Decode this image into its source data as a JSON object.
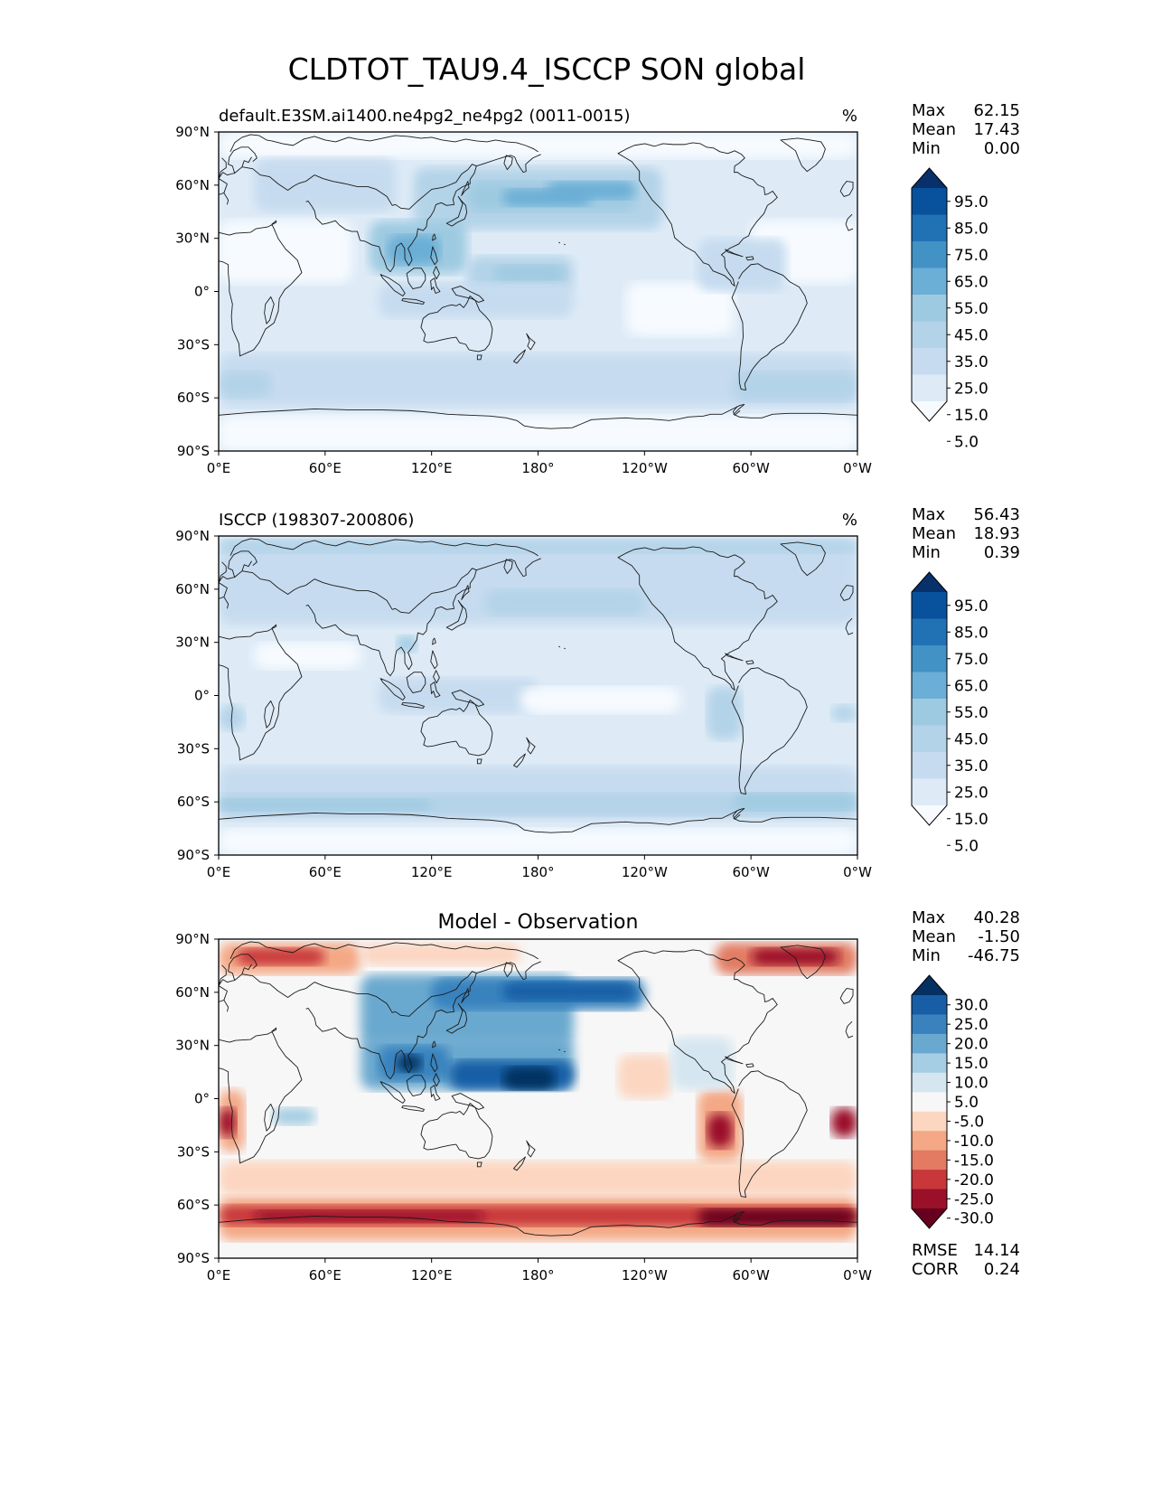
{
  "figure_title": "CLDTOT_TAU9.4_ISCCP SON global",
  "colors": {
    "sequential": [
      "#f7fbff",
      "#deebf7",
      "#c6dbef",
      "#b3d3e8",
      "#9ecae1",
      "#6baed6",
      "#4292c6",
      "#2171b5",
      "#08519c",
      "#08306b"
    ],
    "diverging": [
      "#67001f",
      "#9b1029",
      "#c8373a",
      "#e27b62",
      "#f4a885",
      "#fcd6c1",
      "#f7f7f7",
      "#d5e6f0",
      "#a5cde3",
      "#6aa9cf",
      "#3982be",
      "#185ea6",
      "#053061"
    ],
    "coastline": "#1a1a1a"
  },
  "chart_data": [
    {
      "type": "heatmap",
      "id": "model",
      "title": "",
      "left_title": "default.E3SM.ai1400.ne4pg2_ne4pg2 (0011-0015)",
      "units": "%",
      "stats": {
        "max_label": "Max",
        "max": "62.15",
        "mean_label": "Mean",
        "mean": "17.43",
        "min_label": "Min",
        "min": "0.00"
      },
      "colorbar": {
        "ticks": [
          "95.0",
          "85.0",
          "75.0",
          "65.0",
          "55.0",
          "45.0",
          "35.0",
          "25.0",
          "15.0",
          "5.0"
        ],
        "extend": "both"
      },
      "x_ticks": [
        "0°E",
        "60°E",
        "120°E",
        "180°",
        "120°W",
        "60°W",
        "0°W"
      ],
      "y_ticks": [
        "90°N",
        "60°N",
        "30°N",
        "0°",
        "30°S",
        "60°S",
        "90°S"
      ],
      "xlim": [
        0,
        360
      ],
      "ylim": [
        -90,
        90
      ],
      "cells": [
        {
          "lon0": 0,
          "lon1": 360,
          "lat0": -90,
          "lat1": 90,
          "c": 1
        },
        {
          "lon0": 0,
          "lon1": 75,
          "lat0": 5,
          "lat1": 40,
          "c": 0
        },
        {
          "lon0": 300,
          "lon1": 360,
          "lat0": 5,
          "lat1": 40,
          "c": 0
        },
        {
          "lon0": 230,
          "lon1": 290,
          "lat0": -25,
          "lat1": 5,
          "c": 0
        },
        {
          "lon0": 0,
          "lon1": 360,
          "lat0": -90,
          "lat1": -70,
          "c": 0
        },
        {
          "lon0": 0,
          "lon1": 360,
          "lat0": 75,
          "lat1": 90,
          "c": 0
        },
        {
          "lon0": 20,
          "lon1": 100,
          "lat0": 45,
          "lat1": 75,
          "c": 2
        },
        {
          "lon0": 110,
          "lon1": 250,
          "lat0": 35,
          "lat1": 70,
          "c": 3
        },
        {
          "lon0": 140,
          "lon1": 235,
          "lat0": 45,
          "lat1": 62,
          "c": 4
        },
        {
          "lon0": 160,
          "lon1": 210,
          "lat0": 48,
          "lat1": 58,
          "c": 5
        },
        {
          "lon0": 185,
          "lon1": 235,
          "lat0": 52,
          "lat1": 62,
          "c": 5
        },
        {
          "lon0": 85,
          "lon1": 140,
          "lat0": 10,
          "lat1": 40,
          "c": 4
        },
        {
          "lon0": 95,
          "lon1": 125,
          "lat0": 15,
          "lat1": 32,
          "c": 5
        },
        {
          "lon0": 140,
          "lon1": 200,
          "lat0": 0,
          "lat1": 20,
          "c": 3
        },
        {
          "lon0": 155,
          "lon1": 195,
          "lat0": 5,
          "lat1": 15,
          "c": 4
        },
        {
          "lon0": 0,
          "lon1": 360,
          "lat0": -65,
          "lat1": -35,
          "c": 2
        },
        {
          "lon0": 0,
          "lon1": 30,
          "lat0": -60,
          "lat1": -45,
          "c": 3
        },
        {
          "lon0": 290,
          "lon1": 360,
          "lat0": -62,
          "lat1": -45,
          "c": 3
        },
        {
          "lon0": 90,
          "lon1": 200,
          "lat0": -15,
          "lat1": 5,
          "c": 2
        },
        {
          "lon0": 270,
          "lon1": 320,
          "lat0": 0,
          "lat1": 30,
          "c": 2
        }
      ]
    },
    {
      "type": "heatmap",
      "id": "obs",
      "title": "",
      "left_title": "ISCCP (198307-200806)",
      "units": "%",
      "stats": {
        "max_label": "Max",
        "max": "56.43",
        "mean_label": "Mean",
        "mean": "18.93",
        "min_label": "Min",
        "min": "0.39"
      },
      "colorbar": {
        "ticks": [
          "95.0",
          "85.0",
          "75.0",
          "65.0",
          "55.0",
          "45.0",
          "35.0",
          "25.0",
          "15.0",
          "5.0"
        ],
        "extend": "both"
      },
      "x_ticks": [
        "0°E",
        "60°E",
        "120°E",
        "180°",
        "120°W",
        "60°W",
        "0°W"
      ],
      "y_ticks": [
        "90°N",
        "60°N",
        "30°N",
        "0°",
        "30°S",
        "60°S",
        "90°S"
      ],
      "xlim": [
        0,
        360
      ],
      "ylim": [
        -90,
        90
      ],
      "cells": [
        {
          "lon0": 0,
          "lon1": 360,
          "lat0": -90,
          "lat1": 90,
          "c": 1
        },
        {
          "lon0": 0,
          "lon1": 360,
          "lat0": -90,
          "lat1": -75,
          "c": 0
        },
        {
          "lon0": 0,
          "lon1": 360,
          "lat0": 40,
          "lat1": 88,
          "c": 2
        },
        {
          "lon0": 0,
          "lon1": 360,
          "lat0": 80,
          "lat1": 88,
          "c": 3
        },
        {
          "lon0": 150,
          "lon1": 240,
          "lat0": 45,
          "lat1": 60,
          "c": 3
        },
        {
          "lon0": 0,
          "lon1": 360,
          "lat0": -70,
          "lat1": -40,
          "c": 2
        },
        {
          "lon0": 0,
          "lon1": 360,
          "lat0": -68,
          "lat1": -55,
          "c": 3
        },
        {
          "lon0": 0,
          "lon1": 120,
          "lat0": -65,
          "lat1": -58,
          "c": 4
        },
        {
          "lon0": 290,
          "lon1": 360,
          "lat0": -65,
          "lat1": -55,
          "c": 4
        },
        {
          "lon0": 100,
          "lon1": 112,
          "lat0": 24,
          "lat1": 34,
          "c": 4
        },
        {
          "lon0": 0,
          "lon1": 15,
          "lat0": -20,
          "lat1": -5,
          "c": 3
        },
        {
          "lon0": 275,
          "lon1": 295,
          "lat0": -25,
          "lat1": 5,
          "c": 3
        },
        {
          "lon0": 345,
          "lon1": 360,
          "lat0": -15,
          "lat1": -5,
          "c": 3
        },
        {
          "lon0": 90,
          "lon1": 180,
          "lat0": -10,
          "lat1": 10,
          "c": 2
        },
        {
          "lon0": 170,
          "lon1": 260,
          "lat0": -10,
          "lat1": 5,
          "c": 0
        },
        {
          "lon0": 20,
          "lon1": 80,
          "lat0": 15,
          "lat1": 30,
          "c": 0
        }
      ]
    },
    {
      "type": "heatmap",
      "id": "diff",
      "title": "Model - Observation",
      "left_title": "",
      "units": "",
      "stats": {
        "max_label": "Max",
        "max": "40.28",
        "mean_label": "Mean",
        "mean": "-1.50",
        "min_label": "Min",
        "min": "-46.75"
      },
      "colorbar": {
        "ticks": [
          "30.0",
          "25.0",
          "20.0",
          "15.0",
          "10.0",
          "5.0",
          "-5.0",
          "-10.0",
          "-15.0",
          "-20.0",
          "-25.0",
          "-30.0"
        ],
        "extend": "both"
      },
      "extra_stats": {
        "rmse_label": "RMSE",
        "rmse": "14.14",
        "corr_label": "CORR",
        "corr": "0.24"
      },
      "x_ticks": [
        "0°E",
        "60°E",
        "120°E",
        "180°",
        "120°W",
        "60°W",
        "0°W"
      ],
      "y_ticks": [
        "90°N",
        "60°N",
        "30°N",
        "0°",
        "30°S",
        "60°S",
        "90°S"
      ],
      "xlim": [
        0,
        360
      ],
      "ylim": [
        -90,
        90
      ],
      "cells": [
        {
          "lon0": 0,
          "lon1": 360,
          "lat0": -90,
          "lat1": 90,
          "c": 6
        },
        {
          "lon0": 0,
          "lon1": 80,
          "lat0": 70,
          "lat1": 88,
          "c": 4
        },
        {
          "lon0": 10,
          "lon1": 60,
          "lat0": 75,
          "lat1": 85,
          "c": 2
        },
        {
          "lon0": 280,
          "lon1": 360,
          "lat0": 70,
          "lat1": 88,
          "c": 3
        },
        {
          "lon0": 300,
          "lon1": 350,
          "lat0": 75,
          "lat1": 85,
          "c": 1
        },
        {
          "lon0": 80,
          "lon1": 170,
          "lat0": 75,
          "lat1": 88,
          "c": 5
        },
        {
          "lon0": 0,
          "lon1": 360,
          "lat0": -80,
          "lat1": -55,
          "c": 4
        },
        {
          "lon0": 0,
          "lon1": 360,
          "lat0": -72,
          "lat1": -60,
          "c": 2
        },
        {
          "lon0": 20,
          "lon1": 150,
          "lat0": -70,
          "lat1": -63,
          "c": 1
        },
        {
          "lon0": 270,
          "lon1": 360,
          "lat0": -72,
          "lat1": -62,
          "c": 0
        },
        {
          "lon0": 0,
          "lon1": 360,
          "lat0": -55,
          "lat1": -35,
          "c": 5
        },
        {
          "lon0": 0,
          "lon1": 15,
          "lat0": -30,
          "lat1": 5,
          "c": 4
        },
        {
          "lon0": 0,
          "lon1": 10,
          "lat0": -22,
          "lat1": -5,
          "c": 1
        },
        {
          "lon0": 345,
          "lon1": 360,
          "lat0": -22,
          "lat1": -5,
          "c": 1
        },
        {
          "lon0": 270,
          "lon1": 295,
          "lat0": -35,
          "lat1": 5,
          "c": 4
        },
        {
          "lon0": 275,
          "lon1": 290,
          "lat0": -28,
          "lat1": -8,
          "c": 1
        },
        {
          "lon0": 225,
          "lon1": 255,
          "lat0": 0,
          "lat1": 25,
          "c": 5
        },
        {
          "lon0": 80,
          "lon1": 200,
          "lat0": 30,
          "lat1": 70,
          "c": 9
        },
        {
          "lon0": 120,
          "lon1": 240,
          "lat0": 50,
          "lat1": 68,
          "c": 10
        },
        {
          "lon0": 160,
          "lon1": 235,
          "lat0": 55,
          "lat1": 66,
          "c": 11
        },
        {
          "lon0": 80,
          "lon1": 200,
          "lat0": 5,
          "lat1": 35,
          "c": 9
        },
        {
          "lon0": 90,
          "lon1": 130,
          "lat0": 10,
          "lat1": 30,
          "c": 10
        },
        {
          "lon0": 130,
          "lon1": 200,
          "lat0": 5,
          "lat1": 22,
          "c": 11
        },
        {
          "lon0": 160,
          "lon1": 190,
          "lat0": 5,
          "lat1": 18,
          "c": 12
        },
        {
          "lon0": 100,
          "lon1": 115,
          "lat0": 15,
          "lat1": 25,
          "c": 12
        },
        {
          "lon0": 30,
          "lon1": 55,
          "lat0": -15,
          "lat1": -5,
          "c": 8
        },
        {
          "lon0": 255,
          "lon1": 290,
          "lat0": 5,
          "lat1": 35,
          "c": 7
        }
      ]
    }
  ]
}
